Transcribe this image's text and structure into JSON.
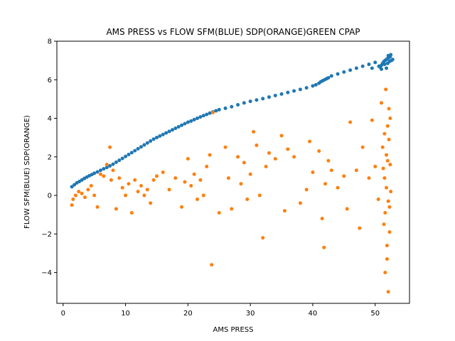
{
  "chart_data": {
    "type": "scatter",
    "title": "AMS PRESS vs FLOW SFM(BLUE) SDP(ORANGE)GREEN CPAP",
    "xlabel": "AMS PRESS",
    "ylabel": "FLOW SFM(BLUE) SDP(ORANGE)",
    "xlim": [
      -1,
      55.5
    ],
    "ylim": [
      -5.6,
      8
    ],
    "xticks": [
      0,
      10,
      20,
      30,
      40,
      50
    ],
    "yticks": [
      -4,
      -2,
      0,
      2,
      4,
      6,
      8
    ],
    "grid": false,
    "series": [
      {
        "color": "#1f77b4",
        "points": [
          [
            1.4,
            0.45
          ],
          [
            1.8,
            0.55
          ],
          [
            2.2,
            0.65
          ],
          [
            2.6,
            0.72
          ],
          [
            3.0,
            0.8
          ],
          [
            3.4,
            0.88
          ],
          [
            3.8,
            0.95
          ],
          [
            4.2,
            1.02
          ],
          [
            4.6,
            1.08
          ],
          [
            5.0,
            1.15
          ],
          [
            5.5,
            1.22
          ],
          [
            6.0,
            1.3
          ],
          [
            6.5,
            1.38
          ],
          [
            7.0,
            1.45
          ],
          [
            7.5,
            1.53
          ],
          [
            8.0,
            1.62
          ],
          [
            8.5,
            1.72
          ],
          [
            9.0,
            1.82
          ],
          [
            9.5,
            1.92
          ],
          [
            10.0,
            2.02
          ],
          [
            10.5,
            2.12
          ],
          [
            11.0,
            2.22
          ],
          [
            11.5,
            2.32
          ],
          [
            12.0,
            2.42
          ],
          [
            12.5,
            2.52
          ],
          [
            13.0,
            2.62
          ],
          [
            13.5,
            2.72
          ],
          [
            14.0,
            2.82
          ],
          [
            14.5,
            2.92
          ],
          [
            15.0,
            3.0
          ],
          [
            15.5,
            3.08
          ],
          [
            16.0,
            3.16
          ],
          [
            16.5,
            3.24
          ],
          [
            17.0,
            3.32
          ],
          [
            17.5,
            3.4
          ],
          [
            18.0,
            3.48
          ],
          [
            18.5,
            3.56
          ],
          [
            19.0,
            3.64
          ],
          [
            19.5,
            3.72
          ],
          [
            20.0,
            3.8
          ],
          [
            20.5,
            3.86
          ],
          [
            21.0,
            3.93
          ],
          [
            21.5,
            4.0
          ],
          [
            22.0,
            4.07
          ],
          [
            22.5,
            4.14
          ],
          [
            23.0,
            4.2
          ],
          [
            23.5,
            4.27
          ],
          [
            24.0,
            4.33
          ],
          [
            24.5,
            4.39
          ],
          [
            25.0,
            4.45
          ],
          [
            26.0,
            4.52
          ],
          [
            27.0,
            4.6
          ],
          [
            28.0,
            4.7
          ],
          [
            29.0,
            4.8
          ],
          [
            30.0,
            4.88
          ],
          [
            31.0,
            4.95
          ],
          [
            32.0,
            5.02
          ],
          [
            33.0,
            5.1
          ],
          [
            34.0,
            5.18
          ],
          [
            35.0,
            5.26
          ],
          [
            36.0,
            5.34
          ],
          [
            37.0,
            5.42
          ],
          [
            38.0,
            5.5
          ],
          [
            39.0,
            5.58
          ],
          [
            40.0,
            5.68
          ],
          [
            40.5,
            5.74
          ],
          [
            41.0,
            5.82
          ],
          [
            41.3,
            5.9
          ],
          [
            41.6,
            5.95
          ],
          [
            41.9,
            6.0
          ],
          [
            42.2,
            6.05
          ],
          [
            42.5,
            6.1
          ],
          [
            43.0,
            6.2
          ],
          [
            44.0,
            6.3
          ],
          [
            45.0,
            6.4
          ],
          [
            46.0,
            6.5
          ],
          [
            47.0,
            6.6
          ],
          [
            48.0,
            6.7
          ],
          [
            49.0,
            6.8
          ],
          [
            49.5,
            6.6
          ],
          [
            50.0,
            6.9
          ],
          [
            50.6,
            6.7
          ],
          [
            51.0,
            6.75
          ],
          [
            51.2,
            6.85
          ],
          [
            51.4,
            6.95
          ],
          [
            51.6,
            7.0
          ],
          [
            51.8,
            7.05
          ],
          [
            52.0,
            7.1
          ],
          [
            52.2,
            7.15
          ],
          [
            52.4,
            7.2
          ],
          [
            52.6,
            7.0
          ],
          [
            52.8,
            7.05
          ],
          [
            52.0,
            6.85
          ],
          [
            51.5,
            6.8
          ],
          [
            52.5,
            7.3
          ],
          [
            51.8,
            6.6
          ],
          [
            52.3,
            6.95
          ],
          [
            51.0,
            6.55
          ],
          [
            52.1,
            7.25
          ],
          [
            50.8,
            6.65
          ]
        ]
      },
      {
        "color": "#ff7f0e",
        "points": [
          [
            1.4,
            -0.5
          ],
          [
            1.6,
            -0.2
          ],
          [
            2.0,
            0.0
          ],
          [
            2.5,
            0.2
          ],
          [
            3.0,
            0.1
          ],
          [
            3.5,
            -0.1
          ],
          [
            4.0,
            0.3
          ],
          [
            4.5,
            0.5
          ],
          [
            5.0,
            0.0
          ],
          [
            5.5,
            -0.6
          ],
          [
            6.0,
            1.1
          ],
          [
            6.5,
            1.0
          ],
          [
            7.0,
            1.6
          ],
          [
            7.5,
            2.5
          ],
          [
            7.7,
            0.8
          ],
          [
            8.0,
            1.3
          ],
          [
            8.5,
            -0.7
          ],
          [
            9.0,
            0.9
          ],
          [
            9.5,
            0.4
          ],
          [
            10.0,
            0.0
          ],
          [
            10.5,
            0.6
          ],
          [
            11.0,
            -0.9
          ],
          [
            11.5,
            0.8
          ],
          [
            12.0,
            0.2
          ],
          [
            12.5,
            0.5
          ],
          [
            13.0,
            0.0
          ],
          [
            13.5,
            0.3
          ],
          [
            14.0,
            -0.4
          ],
          [
            14.5,
            0.8
          ],
          [
            15.0,
            1.0
          ],
          [
            16.0,
            1.2
          ],
          [
            17.0,
            0.3
          ],
          [
            18.0,
            0.9
          ],
          [
            19.0,
            -0.6
          ],
          [
            19.5,
            0.7
          ],
          [
            20.0,
            1.9
          ],
          [
            20.5,
            0.5
          ],
          [
            21.0,
            1.1
          ],
          [
            21.5,
            -0.2
          ],
          [
            22.0,
            0.8
          ],
          [
            22.5,
            0.0
          ],
          [
            23.0,
            1.5
          ],
          [
            23.5,
            2.1
          ],
          [
            23.8,
            -3.6
          ],
          [
            24.0,
            4.3
          ],
          [
            25.0,
            -0.9
          ],
          [
            26.0,
            2.5
          ],
          [
            26.5,
            0.9
          ],
          [
            27.0,
            -0.7
          ],
          [
            28.0,
            2.0
          ],
          [
            28.5,
            0.6
          ],
          [
            29.0,
            1.7
          ],
          [
            29.5,
            -0.2
          ],
          [
            30.0,
            1.1
          ],
          [
            30.5,
            3.3
          ],
          [
            31.0,
            2.6
          ],
          [
            31.5,
            0.0
          ],
          [
            32.0,
            -2.2
          ],
          [
            32.5,
            1.5
          ],
          [
            33.0,
            2.2
          ],
          [
            34.0,
            1.9
          ],
          [
            35.0,
            3.1
          ],
          [
            35.5,
            -0.8
          ],
          [
            36.0,
            2.4
          ],
          [
            37.0,
            2.0
          ],
          [
            38.0,
            -0.4
          ],
          [
            39.0,
            0.3
          ],
          [
            39.5,
            2.8
          ],
          [
            40.0,
            1.2
          ],
          [
            41.0,
            2.3
          ],
          [
            41.5,
            -1.2
          ],
          [
            41.8,
            -2.7
          ],
          [
            42.0,
            0.6
          ],
          [
            42.5,
            1.8
          ],
          [
            43.0,
            1.3
          ],
          [
            44.0,
            0.4
          ],
          [
            45.0,
            1.0
          ],
          [
            45.5,
            -0.7
          ],
          [
            46.0,
            3.8
          ],
          [
            47.0,
            1.3
          ],
          [
            47.5,
            -1.7
          ],
          [
            48.0,
            2.5
          ],
          [
            49.0,
            0.9
          ],
          [
            49.5,
            3.9
          ],
          [
            50.0,
            1.5
          ],
          [
            50.5,
            -0.2
          ],
          [
            51.0,
            4.8
          ],
          [
            51.2,
            2.5
          ],
          [
            51.4,
            -1.5
          ],
          [
            51.5,
            3.2
          ],
          [
            51.6,
            -4.0
          ],
          [
            51.7,
            5.5
          ],
          [
            51.8,
            0.4
          ],
          [
            51.9,
            -2.6
          ],
          [
            52.0,
            1.8
          ],
          [
            52.1,
            -5.0
          ],
          [
            52.2,
            2.9
          ],
          [
            52.3,
            -0.6
          ],
          [
            52.4,
            4.0
          ],
          [
            52.5,
            0.2
          ],
          [
            51.3,
            1.4
          ],
          [
            51.6,
            -0.9
          ],
          [
            52.0,
            3.6
          ],
          [
            52.3,
            -1.9
          ],
          [
            51.8,
            2.1
          ],
          [
            52.1,
            -0.3
          ],
          [
            51.5,
            0.9
          ],
          [
            52.4,
            1.6
          ],
          [
            51.9,
            -3.3
          ],
          [
            52.2,
            4.5
          ]
        ]
      }
    ]
  }
}
